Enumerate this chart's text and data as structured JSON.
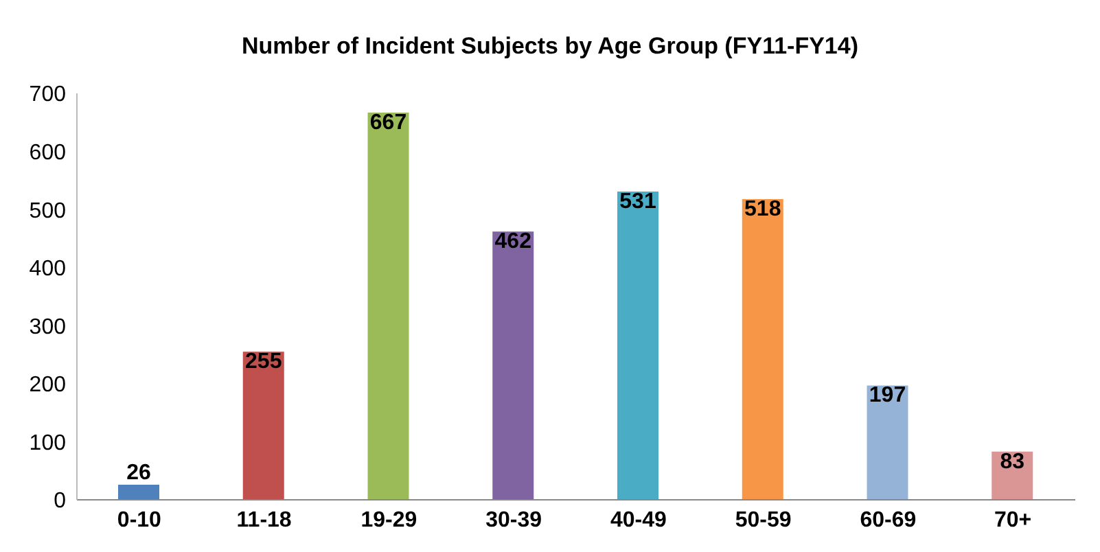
{
  "chart_data": {
    "type": "bar",
    "title": "Number of Incident Subjects by Age Group (FY11-FY14)",
    "categories": [
      "0-10",
      "11-18",
      "19-29",
      "30-39",
      "40-49",
      "50-59",
      "60-69",
      "70+"
    ],
    "values": [
      26,
      255,
      667,
      462,
      531,
      518,
      197,
      83
    ],
    "colors": [
      "#4f81bd",
      "#c0504d",
      "#9bbb59",
      "#8064a2",
      "#4bacc6",
      "#f79646",
      "#95b3d7",
      "#d99694"
    ],
    "ylim": [
      0,
      700
    ],
    "yticks": [
      0,
      100,
      200,
      300,
      400,
      500,
      600,
      700
    ],
    "grid": false,
    "data_labels": true
  }
}
